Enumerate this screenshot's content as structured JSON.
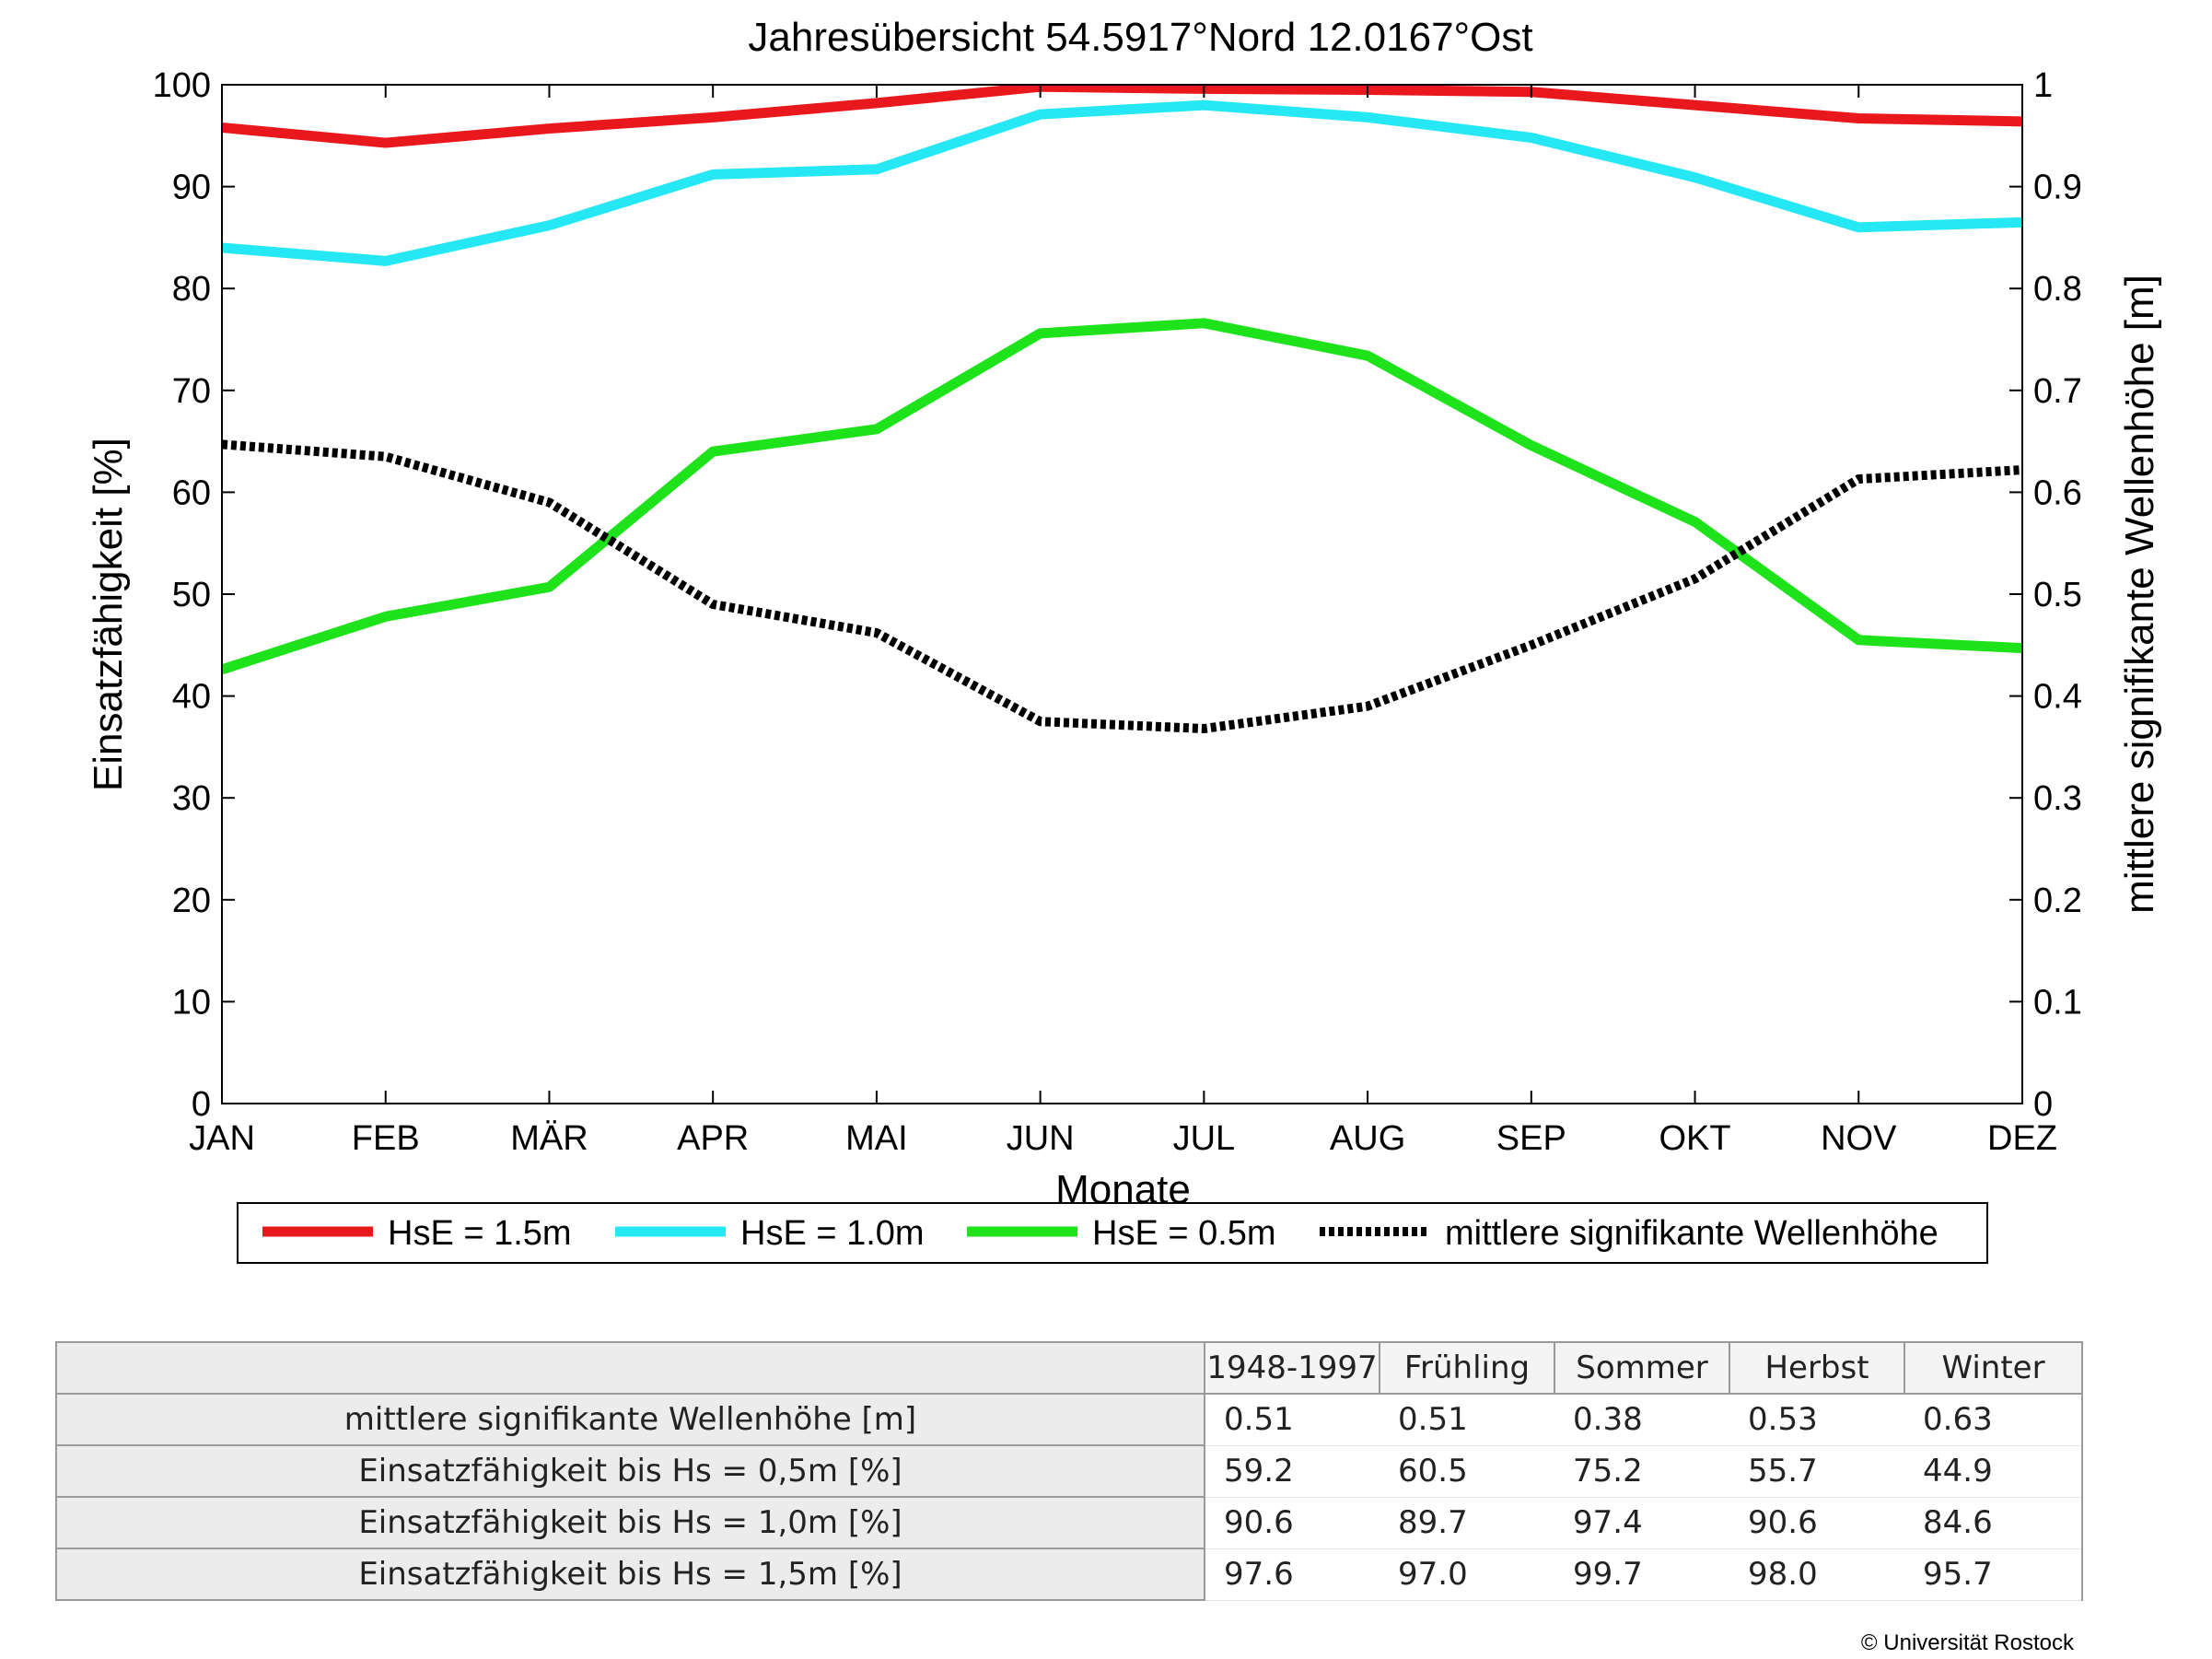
{
  "chart_data": {
    "type": "line",
    "title": "Jahresübersicht  54.5917°Nord  12.0167°Ost",
    "xlabel": "Monate",
    "ylabel": "Einsatzfähigkeit [%]",
    "y2label": "mittlere signifikante Wellenhöhe [m]",
    "categories": [
      "JAN",
      "FEB",
      "MÄR",
      "APR",
      "MAI",
      "JUN",
      "JUL",
      "AUG",
      "SEP",
      "OKT",
      "NOV",
      "DEZ"
    ],
    "ylim": [
      0,
      100
    ],
    "y2lim": [
      0,
      1
    ],
    "yticks": [
      "0",
      "10",
      "20",
      "30",
      "40",
      "50",
      "60",
      "70",
      "80",
      "90",
      "100"
    ],
    "y2ticks": [
      "0",
      "0.1",
      "0.2",
      "0.3",
      "0.4",
      "0.5",
      "0.6",
      "0.7",
      "0.8",
      "0.9",
      "1"
    ],
    "grid": false,
    "legend_position": "bottom",
    "series": [
      {
        "name": "HsE = 1.5m",
        "axis": "left",
        "color": "#e8181c",
        "style": "solid",
        "values": [
          95.8,
          94.3,
          95.7,
          96.8,
          98.2,
          99.8,
          99.6,
          99.5,
          99.3,
          98.0,
          96.7,
          96.4
        ]
      },
      {
        "name": "HsE = 1.0m",
        "axis": "left",
        "color": "#26e8f5",
        "style": "solid",
        "values": [
          84.0,
          82.7,
          86.2,
          91.2,
          91.7,
          97.1,
          98.0,
          96.8,
          94.8,
          90.9,
          86.0,
          86.5
        ]
      },
      {
        "name": "HsE = 0.5m",
        "axis": "left",
        "color": "#1ee31b",
        "style": "solid",
        "values": [
          42.6,
          47.8,
          50.7,
          64.0,
          66.2,
          75.6,
          76.6,
          73.4,
          64.6,
          57.1,
          45.5,
          44.7
        ]
      },
      {
        "name": "mittlere signifikante Wellenhöhe",
        "axis": "right",
        "color": "#000000",
        "style": "dotted",
        "values": [
          0.647,
          0.635,
          0.59,
          0.49,
          0.462,
          0.375,
          0.368,
          0.39,
          0.45,
          0.515,
          0.613,
          0.622
        ]
      }
    ]
  },
  "table": {
    "columns": [
      "1948-1997",
      "Frühling",
      "Sommer",
      "Herbst",
      "Winter"
    ],
    "rows": [
      {
        "label": "mittlere signifikante Wellenhöhe [m]",
        "values": [
          "0.51",
          "0.51",
          "0.38",
          "0.53",
          "0.63"
        ]
      },
      {
        "label": "Einsatzfähigkeit bis Hs = 0,5m [%]",
        "values": [
          "59.2",
          "60.5",
          "75.2",
          "55.7",
          "44.9"
        ]
      },
      {
        "label": "Einsatzfähigkeit bis Hs = 1,0m [%]",
        "values": [
          "90.6",
          "89.7",
          "97.4",
          "90.6",
          "84.6"
        ]
      },
      {
        "label": "Einsatzfähigkeit bis Hs = 1,5m [%]",
        "values": [
          "97.6",
          "97.0",
          "99.7",
          "98.0",
          "95.7"
        ]
      }
    ]
  },
  "footer": {
    "copyright": "© Universität Rostock"
  }
}
